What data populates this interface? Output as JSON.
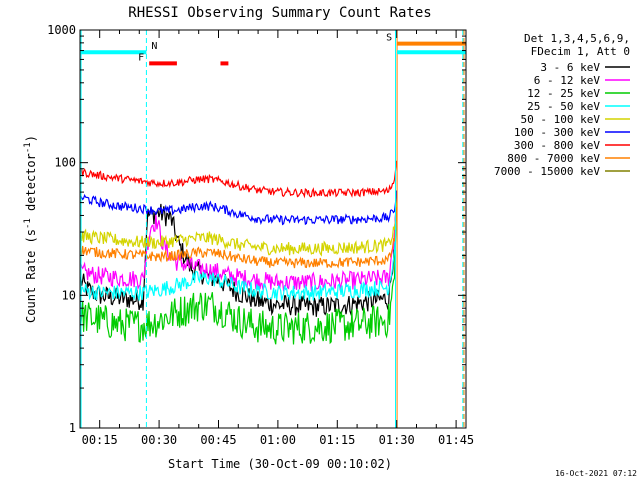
{
  "chart_data": {
    "type": "line",
    "title": "RHESSI Observing Summary Count Rates",
    "xlabel": "Start Time (30-Oct-09 00:10:02)",
    "ylabel": "Count Rate (s",
    "ylabel_sup": "-1",
    "ylabel_mid": " detector",
    "ylabel_sup2": "-1",
    "ylabel_end": ")",
    "x_scale": "time (minutes after 00:00 UT)",
    "xlim": [
      10.03,
      107.5
    ],
    "x_ticks": [
      {
        "value": 15,
        "label": "00:15"
      },
      {
        "value": 30,
        "label": "00:30"
      },
      {
        "value": 45,
        "label": "00:45"
      },
      {
        "value": 60,
        "label": "01:00"
      },
      {
        "value": 75,
        "label": "01:15"
      },
      {
        "value": 90,
        "label": "01:30"
      },
      {
        "value": 105,
        "label": "01:45"
      }
    ],
    "y_scale": "log",
    "ylim": [
      1,
      1000
    ],
    "y_ticks": [
      {
        "value": 1,
        "label": "1"
      },
      {
        "value": 10,
        "label": "10"
      },
      {
        "value": 100,
        "label": "100"
      },
      {
        "value": 1000,
        "label": "1000"
      }
    ],
    "legend": {
      "placement": "right",
      "header": [
        "Det 1,3,4,5,6,9,",
        "FDecim 1, Att 0"
      ]
    },
    "series": [
      {
        "name": "3 - 6 keV",
        "color": "#000000",
        "noise": 0.08,
        "points": [
          [
            10.2,
            13
          ],
          [
            12,
            11
          ],
          [
            15,
            10
          ],
          [
            20,
            9.5
          ],
          [
            26,
            9.2
          ],
          [
            27,
            40
          ],
          [
            30,
            42
          ],
          [
            33,
            38
          ],
          [
            35,
            24
          ],
          [
            38,
            16
          ],
          [
            42,
            14
          ],
          [
            45,
            13
          ],
          [
            47,
            12
          ],
          [
            50,
            10.5
          ],
          [
            55,
            9
          ],
          [
            60,
            8.5
          ],
          [
            70,
            8.2
          ],
          [
            78,
            8.5
          ],
          [
            83,
            9
          ],
          [
            88,
            9.5
          ],
          [
            89.5,
            25
          ],
          [
            90,
            60
          ]
        ]
      },
      {
        "name": "6 - 12 keV",
        "color": "#ff00ff",
        "noise": 0.07,
        "points": [
          [
            10.2,
            15
          ],
          [
            15,
            14
          ],
          [
            20,
            13.5
          ],
          [
            26,
            13.2
          ],
          [
            27,
            24
          ],
          [
            28,
            34
          ],
          [
            29.5,
            36
          ],
          [
            31,
            24
          ],
          [
            34,
            18
          ],
          [
            40,
            16
          ],
          [
            45,
            15
          ],
          [
            48,
            14
          ],
          [
            55,
            13
          ],
          [
            60,
            12.5
          ],
          [
            70,
            12.5
          ],
          [
            80,
            13
          ],
          [
            88,
            13.5
          ],
          [
            89.5,
            30
          ],
          [
            90,
            65
          ]
        ]
      },
      {
        "name": "12 - 25 keV",
        "color": "#00cc00",
        "noise": 0.13,
        "points": [
          [
            10.2,
            7
          ],
          [
            15,
            6.5
          ],
          [
            20,
            6
          ],
          [
            26,
            6
          ],
          [
            30,
            6.5
          ],
          [
            35,
            7.5
          ],
          [
            40,
            8.5
          ],
          [
            43,
            8.5
          ],
          [
            47,
            7.5
          ],
          [
            50,
            6.5
          ],
          [
            55,
            5.8
          ],
          [
            60,
            5.6
          ],
          [
            70,
            5.8
          ],
          [
            80,
            6
          ],
          [
            88,
            6.5
          ],
          [
            89.5,
            14
          ],
          [
            90,
            45
          ]
        ]
      },
      {
        "name": "25 - 50 keV",
        "color": "#00ffff",
        "noise": 0.06,
        "points": [
          [
            10.2,
            11
          ],
          [
            15,
            10.5
          ],
          [
            20,
            10.5
          ],
          [
            26,
            10.5
          ],
          [
            30,
            11
          ],
          [
            35,
            12
          ],
          [
            40,
            13.5
          ],
          [
            43,
            13.5
          ],
          [
            47,
            12.5
          ],
          [
            50,
            11.5
          ],
          [
            55,
            10.8
          ],
          [
            60,
            10.5
          ],
          [
            70,
            10.5
          ],
          [
            80,
            11
          ],
          [
            88,
            11.5
          ],
          [
            89.5,
            22
          ],
          [
            90,
            55
          ]
        ]
      },
      {
        "name": "50 - 100 keV",
        "color": "#d4d400",
        "noise": 0.05,
        "points": [
          [
            10.2,
            28
          ],
          [
            15,
            27
          ],
          [
            20,
            26
          ],
          [
            26,
            25
          ],
          [
            30,
            25
          ],
          [
            35,
            26
          ],
          [
            40,
            27
          ],
          [
            43,
            27
          ],
          [
            47,
            25.5
          ],
          [
            50,
            24
          ],
          [
            55,
            23
          ],
          [
            60,
            22.5
          ],
          [
            70,
            22.5
          ],
          [
            80,
            23
          ],
          [
            88,
            24
          ],
          [
            89.5,
            32
          ],
          [
            90,
            55
          ]
        ]
      },
      {
        "name": "100 - 300 keV",
        "color": "#0000ff",
        "noise": 0.035,
        "points": [
          [
            10.2,
            55
          ],
          [
            15,
            50
          ],
          [
            20,
            47
          ],
          [
            26,
            45
          ],
          [
            30,
            43
          ],
          [
            35,
            44
          ],
          [
            40,
            47
          ],
          [
            43,
            47
          ],
          [
            47,
            44
          ],
          [
            50,
            41
          ],
          [
            55,
            38
          ],
          [
            60,
            37
          ],
          [
            70,
            37
          ],
          [
            80,
            37.5
          ],
          [
            88,
            38.5
          ],
          [
            89.5,
            45
          ],
          [
            90,
            65
          ]
        ]
      },
      {
        "name": "300 - 800 keV",
        "color": "#ff0000",
        "noise": 0.03,
        "points": [
          [
            10.2,
            85
          ],
          [
            15,
            80
          ],
          [
            20,
            76
          ],
          [
            26,
            72
          ],
          [
            30,
            70
          ],
          [
            35,
            71
          ],
          [
            40,
            75
          ],
          [
            43,
            75
          ],
          [
            47,
            71
          ],
          [
            50,
            67
          ],
          [
            55,
            62
          ],
          [
            60,
            60
          ],
          [
            70,
            59
          ],
          [
            80,
            59.5
          ],
          [
            88,
            61
          ],
          [
            89.5,
            75
          ],
          [
            90,
            115
          ]
        ]
      },
      {
        "name": "800 - 7000 keV",
        "color": "#ff8000",
        "noise": 0.04,
        "points": [
          [
            10.2,
            22
          ],
          [
            15,
            21
          ],
          [
            20,
            20.5
          ],
          [
            26,
            20
          ],
          [
            30,
            19.5
          ],
          [
            35,
            20
          ],
          [
            40,
            21
          ],
          [
            43,
            21
          ],
          [
            47,
            20
          ],
          [
            50,
            19
          ],
          [
            55,
            18
          ],
          [
            60,
            17.5
          ],
          [
            70,
            17.5
          ],
          [
            80,
            17.8
          ],
          [
            88,
            18.5
          ],
          [
            89.5,
            26
          ],
          [
            90,
            50
          ]
        ]
      },
      {
        "name": "7000 - 15000 keV",
        "color": "#808000",
        "noise": 0.0,
        "points": []
      }
    ],
    "markers": {
      "vertical_lines": [
        {
          "x": 10.3,
          "color": "#00ffff",
          "style": "solid"
        },
        {
          "x": 26.8,
          "color": "#00ffff",
          "style": "dashed"
        },
        {
          "x": 89.7,
          "color": "#00ffff",
          "style": "solid"
        },
        {
          "x": 90.1,
          "color": "#ff8000",
          "style": "solid"
        },
        {
          "x": 106.7,
          "color": "#00ffff",
          "style": "dashed"
        },
        {
          "x": 107.0,
          "color": "#ff8000",
          "style": "dashed"
        }
      ],
      "bars": [
        {
          "label": "N",
          "color": "#00ffff",
          "x0": 10.3,
          "x1": 26.8,
          "y": 680,
          "label_at": "end"
        },
        {
          "label": "F",
          "color": "#ff0000",
          "x0": 27.5,
          "x1": 34.5,
          "y": 560,
          "label_at": "start"
        },
        {
          "label": "",
          "color": "#ff0000",
          "x0": 45.5,
          "x1": 47.5,
          "y": 560,
          "label_at": "none"
        },
        {
          "label": "S",
          "color": "#ff8000",
          "x0": 90.1,
          "x1": 107.5,
          "y": 790,
          "label_at": "start"
        },
        {
          "label": "",
          "color": "#00ffff",
          "x0": 90.1,
          "x1": 107.5,
          "y": 680,
          "label_at": "none"
        }
      ]
    }
  },
  "footer": {
    "timestamp": "16-Oct-2021 07:12"
  }
}
